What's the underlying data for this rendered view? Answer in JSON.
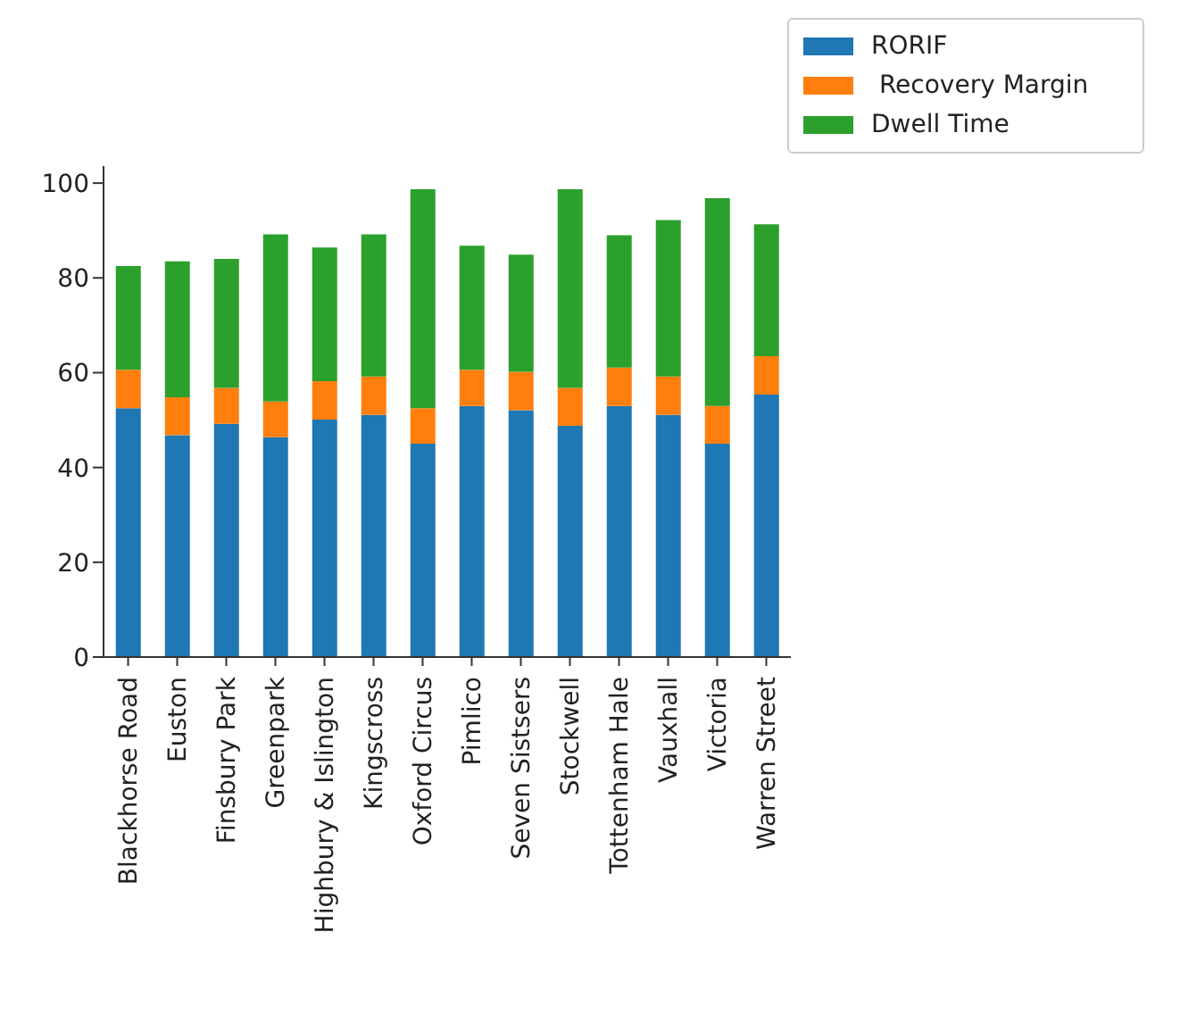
{
  "chart_data": {
    "type": "bar",
    "stacked": true,
    "categories": [
      "Blackhorse Road",
      "Euston",
      "Finsbury Park",
      "Greenpark",
      "Highbury & Islington",
      "Kingscross",
      "Oxford Circus",
      "Pimlico",
      "Seven Sistsers",
      "Stockwell",
      "Tottenham Hale",
      "Vauxhall",
      "Victoria",
      "Warren Street"
    ],
    "series": [
      {
        "name": "RORIF",
        "color": "#1f77b4",
        "values": [
          52.5,
          46.8,
          49.2,
          46.4,
          50.1,
          51.1,
          45.0,
          53.0,
          52.1,
          48.8,
          53.0,
          51.1,
          45.0,
          55.4
        ]
      },
      {
        "name": " Recovery Margin",
        "color": "#ff7f0e",
        "values": [
          8.1,
          8.0,
          7.6,
          7.5,
          8.1,
          8.1,
          7.5,
          7.6,
          8.1,
          8.0,
          8.1,
          8.1,
          8.0,
          8.1
        ]
      },
      {
        "name": "Dwell Time",
        "color": "#2ca02c",
        "values": [
          21.9,
          28.7,
          27.2,
          35.3,
          28.2,
          30.0,
          46.2,
          26.2,
          24.7,
          41.9,
          27.9,
          33.0,
          43.8,
          27.8
        ]
      }
    ],
    "ylim": [
      0,
      103.6
    ],
    "yticks": [
      0,
      20,
      40,
      60,
      80,
      100
    ],
    "legend": "top right",
    "grid": false
  }
}
